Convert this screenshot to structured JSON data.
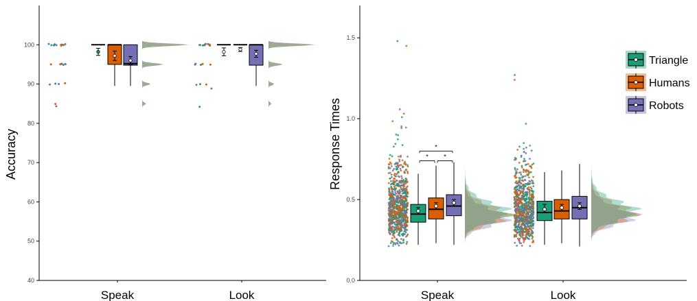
{
  "colors": {
    "triangle": "#1b9e77",
    "humans": "#d95f02",
    "robots": "#7570b3",
    "axis": "#000000"
  },
  "legend": {
    "position": "top-right",
    "items": [
      {
        "key": "triangle",
        "label": "Triangle"
      },
      {
        "key": "humans",
        "label": "Humans"
      },
      {
        "key": "robots",
        "label": "Robots"
      }
    ]
  },
  "chart_data": [
    {
      "type": "box",
      "xlabel": "",
      "ylabel": "Accuracy",
      "ylim": [
        40,
        110
      ],
      "yticks": [
        40,
        50,
        60,
        70,
        80,
        90,
        100
      ],
      "categories": [
        "Speak",
        "Look"
      ],
      "grid": false,
      "series": [
        {
          "key": "triangle",
          "boxes": [
            {
              "q1": 100,
              "median": 100,
              "q3": 100,
              "whisker_low": 100,
              "whisker_high": 100,
              "mean": 98.2,
              "ci": [
                97.3,
                99.1
              ]
            },
            {
              "q1": 100,
              "median": 100,
              "q3": 100,
              "whisker_low": 100,
              "whisker_high": 100,
              "mean": 98.2,
              "ci": [
                97.2,
                99.2
              ]
            }
          ]
        },
        {
          "key": "humans",
          "boxes": [
            {
              "q1": 95,
              "median": 100,
              "q3": 100,
              "whisker_low": 89.5,
              "whisker_high": 100,
              "mean": 97.2,
              "ci": [
                96.0,
                98.4
              ]
            },
            {
              "q1": 100,
              "median": 100,
              "q3": 100,
              "whisker_low": 100,
              "whisker_high": 100,
              "mean": 98.8,
              "ci": [
                98.3,
                99.3
              ]
            }
          ]
        },
        {
          "key": "robots",
          "boxes": [
            {
              "q1": 94.8,
              "median": 95.2,
              "q3": 100,
              "whisker_low": 89.5,
              "whisker_high": 100,
              "mean": 96.0,
              "ci": [
                95.0,
                97.0
              ]
            },
            {
              "q1": 94.8,
              "median": 100,
              "q3": 100,
              "whisker_low": 89.5,
              "whisker_high": 100,
              "mean": 97.7,
              "ci": [
                96.8,
                98.6
              ]
            }
          ]
        }
      ],
      "points": [
        {
          "group": "Speak",
          "series": "triangle",
          "values": [
            100,
            100,
            100,
            100,
            100,
            95,
            95,
            90
          ]
        },
        {
          "group": "Speak",
          "series": "humans",
          "values": [
            100,
            100,
            100,
            95,
            95,
            95,
            90,
            85
          ]
        },
        {
          "group": "Speak",
          "series": "robots",
          "values": [
            100,
            100,
            100,
            95,
            95,
            90,
            90,
            84.5
          ]
        },
        {
          "group": "Look",
          "series": "triangle",
          "values": [
            100,
            100,
            100,
            100,
            95,
            90,
            84.2
          ]
        },
        {
          "group": "Look",
          "series": "humans",
          "values": [
            100,
            100,
            100,
            100,
            95,
            95,
            90
          ]
        },
        {
          "group": "Look",
          "series": "robots",
          "values": [
            100,
            100,
            100,
            95,
            95,
            90,
            89
          ]
        }
      ],
      "densities": [
        {
          "group": "Speak",
          "peaks": [
            {
              "y": 100,
              "w": 1.0
            },
            {
              "y": 95,
              "w": 0.45
            },
            {
              "y": 90,
              "w": 0.18
            },
            {
              "y": 85,
              "w": 0.08
            }
          ]
        },
        {
          "group": "Look",
          "peaks": [
            {
              "y": 100,
              "w": 1.0
            },
            {
              "y": 95,
              "w": 0.3
            },
            {
              "y": 90,
              "w": 0.12
            },
            {
              "y": 85,
              "w": 0.06
            }
          ]
        }
      ]
    },
    {
      "type": "box",
      "xlabel": "",
      "ylabel": "Response Times",
      "ylim": [
        0.0,
        1.7
      ],
      "yticks": [
        0.0,
        0.5,
        1.0,
        1.5
      ],
      "yticklabels": [
        "0.0",
        "0.5",
        "1.0",
        "1.5"
      ],
      "categories": [
        "Speak",
        "Look"
      ],
      "grid": false,
      "series": [
        {
          "key": "triangle",
          "boxes": [
            {
              "q1": 0.36,
              "median": 0.41,
              "q3": 0.47,
              "whisker_low": 0.22,
              "whisker_high": 0.66,
              "mean": 0.43,
              "ci": [
                0.41,
                0.45
              ]
            },
            {
              "q1": 0.37,
              "median": 0.42,
              "q3": 0.49,
              "whisker_low": 0.22,
              "whisker_high": 0.67,
              "mean": 0.44,
              "ci": [
                0.42,
                0.47
              ]
            }
          ]
        },
        {
          "key": "humans",
          "boxes": [
            {
              "q1": 0.38,
              "median": 0.44,
              "q3": 0.51,
              "whisker_low": 0.23,
              "whisker_high": 0.71,
              "mean": 0.46,
              "ci": [
                0.44,
                0.48
              ]
            },
            {
              "q1": 0.38,
              "median": 0.43,
              "q3": 0.5,
              "whisker_low": 0.23,
              "whisker_high": 0.68,
              "mean": 0.45,
              "ci": [
                0.43,
                0.47
              ]
            }
          ]
        },
        {
          "key": "robots",
          "boxes": [
            {
              "q1": 0.4,
              "median": 0.46,
              "q3": 0.53,
              "whisker_low": 0.22,
              "whisker_high": 0.73,
              "mean": 0.48,
              "ci": [
                0.46,
                0.5
              ]
            },
            {
              "q1": 0.38,
              "median": 0.45,
              "q3": 0.52,
              "whisker_low": 0.21,
              "whisker_high": 0.72,
              "mean": 0.46,
              "ci": [
                0.44,
                0.48
              ]
            }
          ]
        }
      ],
      "significance": [
        {
          "group": "Speak",
          "from": "triangle",
          "to": "robots",
          "y": 0.8,
          "label": "*"
        },
        {
          "group": "Speak",
          "from": "triangle",
          "to": "humans",
          "y": 0.74,
          "label": "*"
        },
        {
          "group": "Speak",
          "from": "humans",
          "to": "robots",
          "y": 0.74,
          "label": "*"
        }
      ],
      "points": [
        {
          "group": "Speak",
          "distribution": "right-skewed",
          "center": 0.44,
          "min": 0.21,
          "max": 1.48
        },
        {
          "group": "Look",
          "distribution": "right-skewed",
          "center": 0.44,
          "min": 0.21,
          "max": 1.27
        }
      ],
      "densities": [
        {
          "group": "Speak",
          "mode": 0.4,
          "min": 0.22,
          "max": 1.48
        },
        {
          "group": "Look",
          "mode": 0.41,
          "min": 0.21,
          "max": 1.27
        }
      ]
    }
  ]
}
